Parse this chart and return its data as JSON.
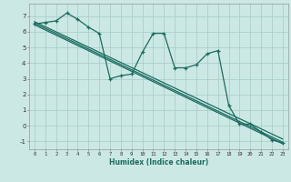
{
  "title": "",
  "xlabel": "Humidex (Indice chaleur)",
  "ylabel": "",
  "background_color": "#cce8e4",
  "grid_color": "#aacfca",
  "line_color": "#1a6b5e",
  "xlim": [
    -0.5,
    23.5
  ],
  "ylim": [
    -1.5,
    7.8
  ],
  "xticks": [
    0,
    1,
    2,
    3,
    4,
    5,
    6,
    7,
    8,
    9,
    10,
    11,
    12,
    13,
    14,
    15,
    16,
    17,
    18,
    19,
    20,
    21,
    22,
    23
  ],
  "yticks": [
    -1,
    0,
    1,
    2,
    3,
    4,
    5,
    6,
    7
  ],
  "series1": [
    6.5,
    6.6,
    6.7,
    7.2,
    6.8,
    6.3,
    5.9,
    3.0,
    3.2,
    3.3,
    4.7,
    5.9,
    5.9,
    3.7,
    3.7,
    3.9,
    4.6,
    4.8,
    1.3,
    0.1,
    0.1,
    -0.4,
    -0.9,
    -1.1
  ],
  "series2_x": [
    0,
    23
  ],
  "series2_y": [
    6.55,
    -1.05
  ],
  "series3_x": [
    0,
    23
  ],
  "series3_y": [
    6.65,
    -0.85
  ],
  "series4_x": [
    0,
    23
  ],
  "series4_y": [
    6.45,
    -1.15
  ]
}
